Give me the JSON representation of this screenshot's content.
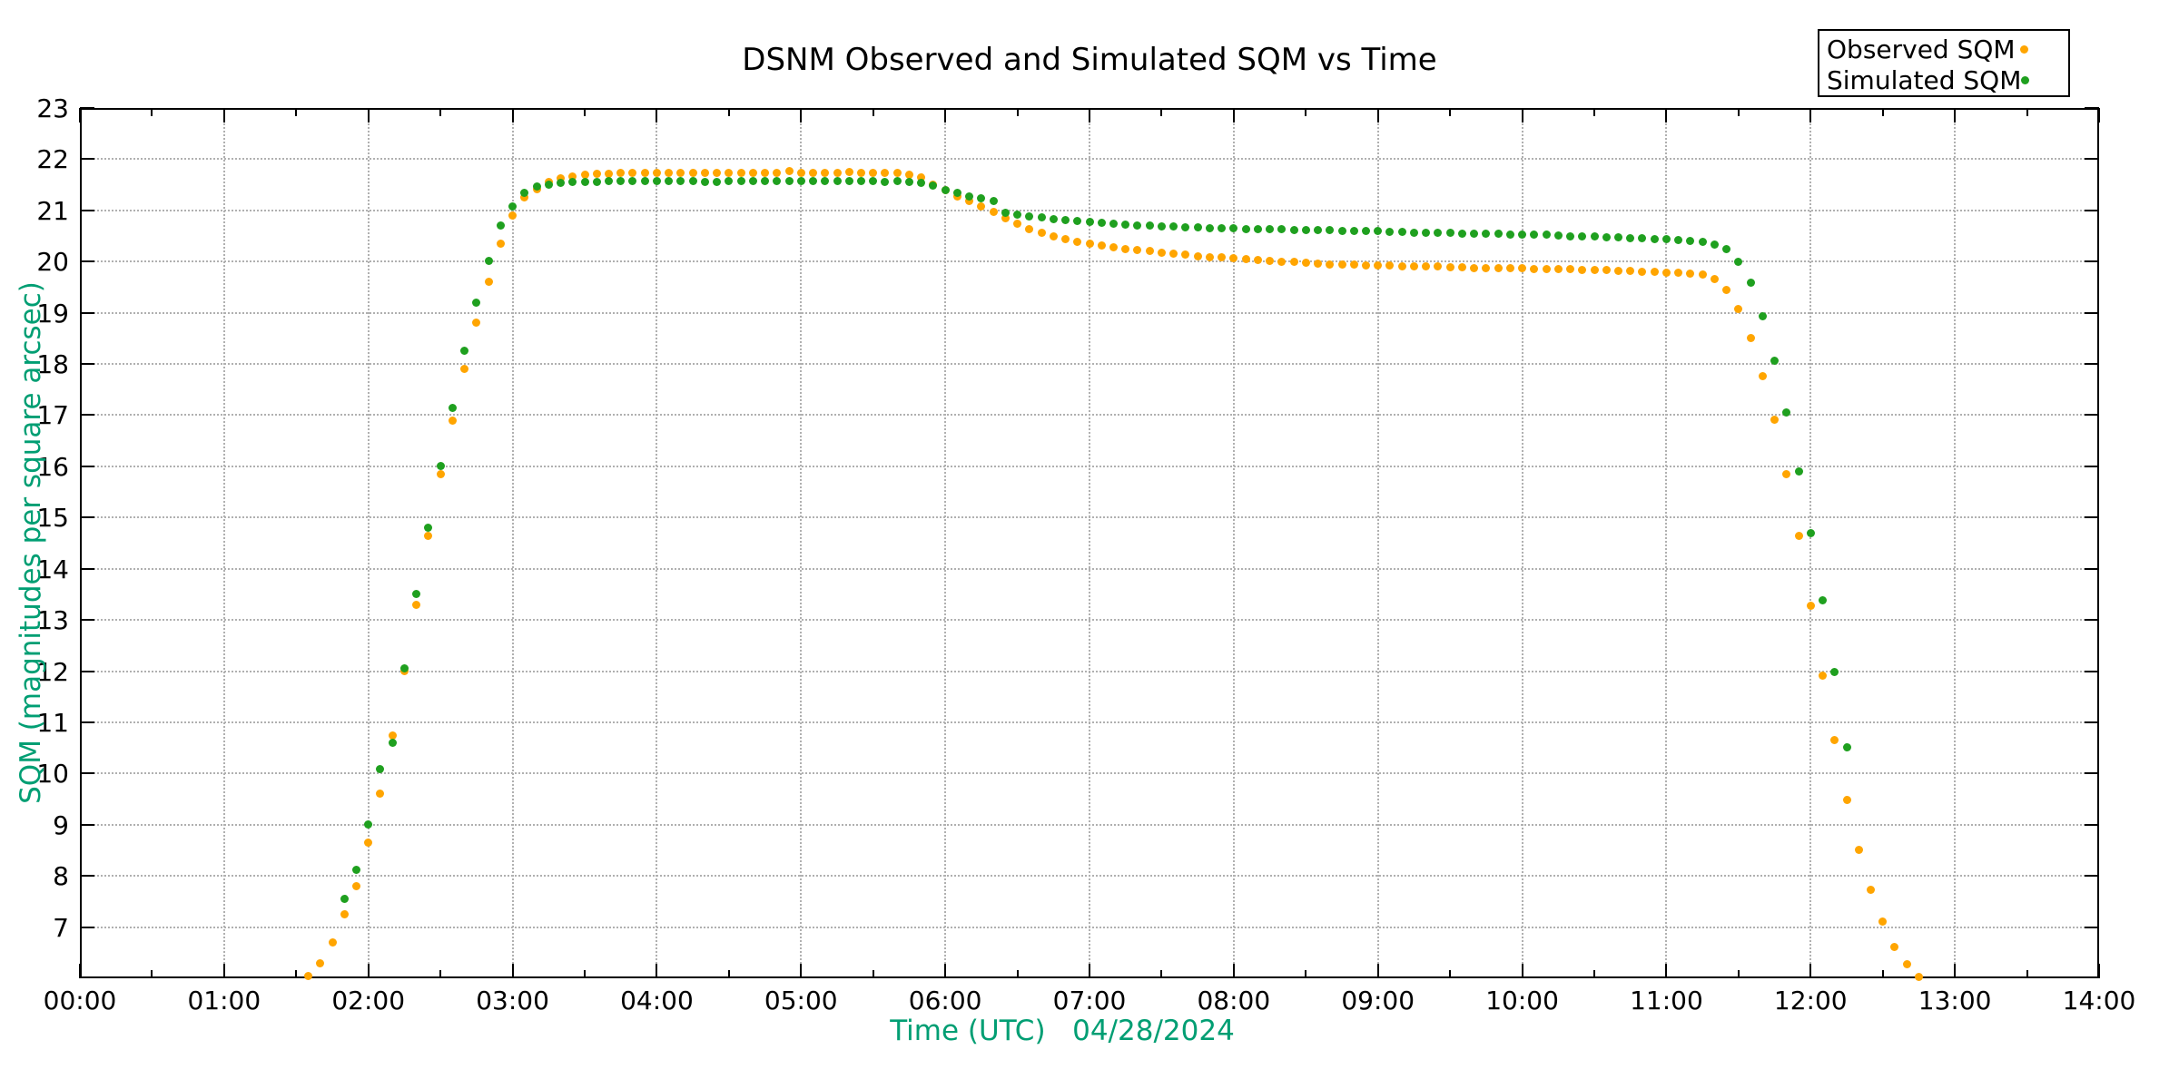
{
  "title": "DSNM Observed and Simulated SQM vs Time",
  "axes": {
    "x": {
      "label": "Time (UTC)   04/28/2024",
      "label_color": "#009E73",
      "tick_labels": [
        "00:00",
        "01:00",
        "02:00",
        "03:00",
        "04:00",
        "05:00",
        "06:00",
        "07:00",
        "08:00",
        "09:00",
        "10:00",
        "11:00",
        "12:00",
        "13:00",
        "14:00"
      ]
    },
    "y": {
      "label": "SQM (magnitudes per square arcsec)",
      "label_color": "#009E73",
      "tick_values": [
        7,
        8,
        9,
        10,
        11,
        12,
        13,
        14,
        15,
        16,
        17,
        18,
        19,
        20,
        21,
        22,
        23
      ]
    }
  },
  "legend": {
    "position": "top-right"
  },
  "chart_data": {
    "type": "scatter",
    "title": "DSNM Observed and Simulated SQM vs Time",
    "xlabel": "Time (UTC)   04/28/2024",
    "ylabel": "SQM (magnitudes per square arcsec)",
    "xlim_hours": [
      0,
      14
    ],
    "ylim": [
      6,
      23
    ],
    "grid": true,
    "grid_color": "#b0b0b0",
    "axis_color": "#000000",
    "axis_label_color": "#009E73",
    "legend_position": "top-right",
    "x_tick_interval_minutes": 60,
    "x_minor_tick_interval_minutes": 30,
    "series": [
      {
        "name": "Observed SQM",
        "color": "#FFA500",
        "marker": "dot",
        "points": [
          [
            "01:35",
            6.05
          ],
          [
            "01:40",
            6.3
          ],
          [
            "01:45",
            6.7
          ],
          [
            "01:50",
            7.25
          ],
          [
            "01:55",
            7.8
          ],
          [
            "02:00",
            8.65
          ],
          [
            "02:05",
            9.6
          ],
          [
            "02:10",
            10.75
          ],
          [
            "02:15",
            12.0
          ],
          [
            "02:20",
            13.3
          ],
          [
            "02:25",
            14.65
          ],
          [
            "02:30",
            15.85
          ],
          [
            "02:35",
            16.9
          ],
          [
            "02:40",
            17.9
          ],
          [
            "02:45",
            18.8
          ],
          [
            "02:50",
            19.6
          ],
          [
            "02:55",
            20.35
          ],
          [
            "03:00",
            20.9
          ],
          [
            "03:05",
            21.25
          ],
          [
            "03:10",
            21.42
          ],
          [
            "03:15",
            21.55
          ],
          [
            "03:20",
            21.62
          ],
          [
            "03:25",
            21.66
          ],
          [
            "03:30",
            21.69
          ],
          [
            "03:35",
            21.71
          ],
          [
            "03:40",
            21.72
          ],
          [
            "03:45",
            21.73
          ],
          [
            "03:50",
            21.73
          ],
          [
            "03:55",
            21.74
          ],
          [
            "04:00",
            21.73
          ],
          [
            "04:05",
            21.74
          ],
          [
            "04:10",
            21.74
          ],
          [
            "04:15",
            21.74
          ],
          [
            "04:20",
            21.73
          ],
          [
            "04:25",
            21.73
          ],
          [
            "04:30",
            21.74
          ],
          [
            "04:35",
            21.74
          ],
          [
            "04:40",
            21.73
          ],
          [
            "04:45",
            21.74
          ],
          [
            "04:50",
            21.74
          ],
          [
            "04:55",
            21.76
          ],
          [
            "05:00",
            21.74
          ],
          [
            "05:05",
            21.74
          ],
          [
            "05:10",
            21.74
          ],
          [
            "05:15",
            21.74
          ],
          [
            "05:20",
            21.75
          ],
          [
            "05:25",
            21.74
          ],
          [
            "05:30",
            21.74
          ],
          [
            "05:35",
            21.73
          ],
          [
            "05:40",
            21.73
          ],
          [
            "05:45",
            21.7
          ],
          [
            "05:50",
            21.64
          ],
          [
            "05:55",
            21.51
          ],
          [
            "06:00",
            21.4
          ],
          [
            "06:05",
            21.28
          ],
          [
            "06:10",
            21.18
          ],
          [
            "06:15",
            21.08
          ],
          [
            "06:20",
            20.97
          ],
          [
            "06:25",
            20.85
          ],
          [
            "06:30",
            20.74
          ],
          [
            "06:35",
            20.64
          ],
          [
            "06:40",
            20.56
          ],
          [
            "06:45",
            20.49
          ],
          [
            "06:50",
            20.44
          ],
          [
            "06:55",
            20.39
          ],
          [
            "07:00",
            20.35
          ],
          [
            "07:05",
            20.31
          ],
          [
            "07:10",
            20.28
          ],
          [
            "07:15",
            20.25
          ],
          [
            "07:20",
            20.22
          ],
          [
            "07:25",
            20.2
          ],
          [
            "07:30",
            20.17
          ],
          [
            "07:35",
            20.15
          ],
          [
            "07:40",
            20.13
          ],
          [
            "07:45",
            20.11
          ],
          [
            "07:50",
            20.09
          ],
          [
            "07:55",
            20.08
          ],
          [
            "08:00",
            20.06
          ],
          [
            "08:05",
            20.04
          ],
          [
            "08:10",
            20.03
          ],
          [
            "08:15",
            20.01
          ],
          [
            "08:20",
            20.0
          ],
          [
            "08:25",
            19.99
          ],
          [
            "08:30",
            19.97
          ],
          [
            "08:35",
            19.96
          ],
          [
            "08:40",
            19.95
          ],
          [
            "08:45",
            19.95
          ],
          [
            "08:50",
            19.94
          ],
          [
            "08:55",
            19.93
          ],
          [
            "09:00",
            19.93
          ],
          [
            "09:05",
            19.92
          ],
          [
            "09:10",
            19.91
          ],
          [
            "09:15",
            19.91
          ],
          [
            "09:20",
            19.9
          ],
          [
            "09:25",
            19.9
          ],
          [
            "09:30",
            19.89
          ],
          [
            "09:35",
            19.89
          ],
          [
            "09:40",
            19.88
          ],
          [
            "09:45",
            19.88
          ],
          [
            "09:50",
            19.88
          ],
          [
            "09:55",
            19.87
          ],
          [
            "10:00",
            19.87
          ],
          [
            "10:05",
            19.86
          ],
          [
            "10:10",
            19.86
          ],
          [
            "10:15",
            19.85
          ],
          [
            "10:20",
            19.85
          ],
          [
            "10:25",
            19.84
          ],
          [
            "10:30",
            19.83
          ],
          [
            "10:35",
            19.83
          ],
          [
            "10:40",
            19.82
          ],
          [
            "10:45",
            19.81
          ],
          [
            "10:50",
            19.8
          ],
          [
            "10:55",
            19.8
          ],
          [
            "11:00",
            19.79
          ],
          [
            "11:05",
            19.78
          ],
          [
            "11:10",
            19.76
          ],
          [
            "11:15",
            19.74
          ],
          [
            "11:20",
            19.66
          ],
          [
            "11:25",
            19.45
          ],
          [
            "11:30",
            19.08
          ],
          [
            "11:35",
            18.51
          ],
          [
            "11:40",
            17.77
          ],
          [
            "11:45",
            16.91
          ],
          [
            "11:50",
            15.85
          ],
          [
            "11:55",
            14.65
          ],
          [
            "12:00",
            13.28
          ],
          [
            "12:05",
            11.91
          ],
          [
            "12:10",
            10.65
          ],
          [
            "12:15",
            9.48
          ],
          [
            "12:20",
            8.5
          ],
          [
            "12:25",
            7.72
          ],
          [
            "12:30",
            7.1
          ],
          [
            "12:35",
            6.62
          ],
          [
            "12:40",
            6.27
          ],
          [
            "12:45",
            6.02
          ]
        ]
      },
      {
        "name": "Simulated SQM",
        "color": "#1FA01F",
        "marker": "dot",
        "points": [
          [
            "01:50",
            7.55
          ],
          [
            "01:55",
            8.12
          ],
          [
            "02:00",
            9.0
          ],
          [
            "02:05",
            10.08
          ],
          [
            "02:10",
            10.6
          ],
          [
            "02:15",
            12.05
          ],
          [
            "02:20",
            13.5
          ],
          [
            "02:25",
            14.8
          ],
          [
            "02:30",
            16.0
          ],
          [
            "02:35",
            17.15
          ],
          [
            "02:40",
            18.25
          ],
          [
            "02:45",
            19.2
          ],
          [
            "02:50",
            20.02
          ],
          [
            "02:55",
            20.7
          ],
          [
            "03:00",
            21.08
          ],
          [
            "03:05",
            21.35
          ],
          [
            "03:10",
            21.46
          ],
          [
            "03:15",
            21.51
          ],
          [
            "03:20",
            21.54
          ],
          [
            "03:25",
            21.55
          ],
          [
            "03:30",
            21.56
          ],
          [
            "03:35",
            21.56
          ],
          [
            "03:40",
            21.57
          ],
          [
            "03:45",
            21.57
          ],
          [
            "03:50",
            21.57
          ],
          [
            "03:55",
            21.58
          ],
          [
            "04:00",
            21.57
          ],
          [
            "04:05",
            21.57
          ],
          [
            "04:10",
            21.57
          ],
          [
            "04:15",
            21.57
          ],
          [
            "04:20",
            21.56
          ],
          [
            "04:25",
            21.56
          ],
          [
            "04:30",
            21.57
          ],
          [
            "04:35",
            21.57
          ],
          [
            "04:40",
            21.57
          ],
          [
            "04:45",
            21.57
          ],
          [
            "04:50",
            21.57
          ],
          [
            "04:55",
            21.58
          ],
          [
            "05:00",
            21.57
          ],
          [
            "05:05",
            21.57
          ],
          [
            "05:10",
            21.57
          ],
          [
            "05:15",
            21.57
          ],
          [
            "05:20",
            21.57
          ],
          [
            "05:25",
            21.57
          ],
          [
            "05:30",
            21.57
          ],
          [
            "05:35",
            21.56
          ],
          [
            "05:40",
            21.57
          ],
          [
            "05:45",
            21.55
          ],
          [
            "05:50",
            21.53
          ],
          [
            "05:55",
            21.49
          ],
          [
            "06:00",
            21.4
          ],
          [
            "06:05",
            21.34
          ],
          [
            "06:10",
            21.28
          ],
          [
            "06:15",
            21.23
          ],
          [
            "06:20",
            21.18
          ],
          [
            "06:25",
            20.96
          ],
          [
            "06:30",
            20.92
          ],
          [
            "06:35",
            20.89
          ],
          [
            "06:40",
            20.86
          ],
          [
            "06:45",
            20.83
          ],
          [
            "06:50",
            20.81
          ],
          [
            "06:55",
            20.79
          ],
          [
            "07:00",
            20.77
          ],
          [
            "07:05",
            20.75
          ],
          [
            "07:10",
            20.74
          ],
          [
            "07:15",
            20.72
          ],
          [
            "07:20",
            20.71
          ],
          [
            "07:25",
            20.7
          ],
          [
            "07:30",
            20.69
          ],
          [
            "07:35",
            20.68
          ],
          [
            "07:40",
            20.67
          ],
          [
            "07:45",
            20.67
          ],
          [
            "07:50",
            20.66
          ],
          [
            "07:55",
            20.65
          ],
          [
            "08:00",
            20.65
          ],
          [
            "08:05",
            20.64
          ],
          [
            "08:10",
            20.64
          ],
          [
            "08:15",
            20.63
          ],
          [
            "08:20",
            20.63
          ],
          [
            "08:25",
            20.62
          ],
          [
            "08:30",
            20.62
          ],
          [
            "08:35",
            20.61
          ],
          [
            "08:40",
            20.61
          ],
          [
            "08:45",
            20.6
          ],
          [
            "08:50",
            20.6
          ],
          [
            "08:55",
            20.59
          ],
          [
            "09:00",
            20.59
          ],
          [
            "09:05",
            20.58
          ],
          [
            "09:10",
            20.58
          ],
          [
            "09:15",
            20.57
          ],
          [
            "09:20",
            20.57
          ],
          [
            "09:25",
            20.56
          ],
          [
            "09:30",
            20.56
          ],
          [
            "09:35",
            20.55
          ],
          [
            "09:40",
            20.55
          ],
          [
            "09:45",
            20.54
          ],
          [
            "09:50",
            20.54
          ],
          [
            "09:55",
            20.53
          ],
          [
            "10:00",
            20.53
          ],
          [
            "10:05",
            20.52
          ],
          [
            "10:10",
            20.52
          ],
          [
            "10:15",
            20.51
          ],
          [
            "10:20",
            20.5
          ],
          [
            "10:25",
            20.5
          ],
          [
            "10:30",
            20.49
          ],
          [
            "10:35",
            20.48
          ],
          [
            "10:40",
            20.47
          ],
          [
            "10:45",
            20.46
          ],
          [
            "10:50",
            20.45
          ],
          [
            "10:55",
            20.44
          ],
          [
            "11:00",
            20.43
          ],
          [
            "11:05",
            20.42
          ],
          [
            "11:10",
            20.41
          ],
          [
            "11:15",
            20.39
          ],
          [
            "11:20",
            20.34
          ],
          [
            "11:25",
            20.24
          ],
          [
            "11:30",
            20.0
          ],
          [
            "11:35",
            19.58
          ],
          [
            "11:40",
            18.94
          ],
          [
            "11:45",
            18.07
          ],
          [
            "11:50",
            17.06
          ],
          [
            "11:55",
            15.9
          ],
          [
            "12:00",
            14.7
          ],
          [
            "12:05",
            13.38
          ],
          [
            "12:10",
            11.98
          ],
          [
            "12:15",
            10.51
          ]
        ]
      }
    ]
  }
}
